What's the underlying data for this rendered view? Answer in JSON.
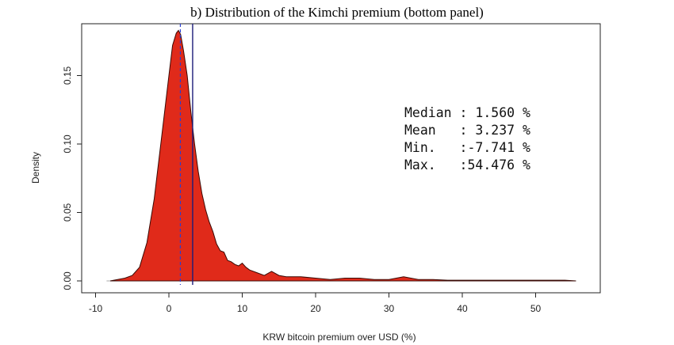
{
  "chart_data": {
    "type": "area",
    "title": "b) Distribution of the Kimchi premium (bottom panel)",
    "xlabel": "KRW bitcoin premium over USD (%)",
    "ylabel": "Density",
    "xlim": [
      -10,
      55
    ],
    "ylim": [
      0,
      0.18
    ],
    "x_ticks": [
      -10,
      0,
      10,
      20,
      30,
      40,
      50
    ],
    "y_ticks": [
      0.0,
      0.05,
      0.1,
      0.15
    ],
    "x_tick_labels": [
      "-10",
      "0",
      "10",
      "20",
      "30",
      "40",
      "50"
    ],
    "y_tick_labels": [
      "0.00",
      "0.05",
      "0.10",
      "0.15"
    ],
    "density": {
      "x": [
        -8.0,
        -7.0,
        -6.0,
        -5.0,
        -4.0,
        -3.0,
        -2.0,
        -1.0,
        0.0,
        0.5,
        1.0,
        1.3,
        1.6,
        2.0,
        2.5,
        3.0,
        3.5,
        4.0,
        4.5,
        5.0,
        5.5,
        6.0,
        6.5,
        7.0,
        7.5,
        8.0,
        8.5,
        9.0,
        9.5,
        10.0,
        10.5,
        11.0,
        12.0,
        13.0,
        14.0,
        15.0,
        16.0,
        18.0,
        20.0,
        22.0,
        24.0,
        26.0,
        28.0,
        30.0,
        32.0,
        34.0,
        36.0,
        38.0,
        40.0,
        42.0,
        44.0,
        46.0,
        48.0,
        50.0,
        52.0,
        54.0,
        55.5
      ],
      "y": [
        0.0,
        0.001,
        0.002,
        0.004,
        0.01,
        0.028,
        0.06,
        0.105,
        0.15,
        0.172,
        0.181,
        0.183,
        0.18,
        0.168,
        0.15,
        0.123,
        0.1,
        0.08,
        0.064,
        0.052,
        0.043,
        0.036,
        0.027,
        0.022,
        0.021,
        0.015,
        0.014,
        0.012,
        0.011,
        0.013,
        0.01,
        0.008,
        0.006,
        0.004,
        0.007,
        0.004,
        0.003,
        0.003,
        0.002,
        0.001,
        0.002,
        0.002,
        0.001,
        0.001,
        0.003,
        0.001,
        0.001,
        0.0005,
        0.0005,
        0.0005,
        0.0005,
        0.0005,
        0.0005,
        0.0005,
        0.0005,
        0.0005,
        0.0
      ]
    },
    "median_line": 1.56,
    "mean_line": 3.237,
    "stats": [
      {
        "label": "Median",
        "value": " 1.560"
      },
      {
        "label": "Mean  ",
        "value": " 3.237"
      },
      {
        "label": "Min.  ",
        "value": "-7.741"
      },
      {
        "label": "Max.  ",
        "value": "54.476"
      }
    ],
    "stats_unit": "%",
    "colors": {
      "fill": "#e02a1a",
      "outline": "#3a0a05",
      "median_line": "#2a3fd0",
      "mean_line": "#1c1c7a",
      "baseline": "#aaaaaa"
    },
    "grid": false,
    "legend": "none"
  }
}
